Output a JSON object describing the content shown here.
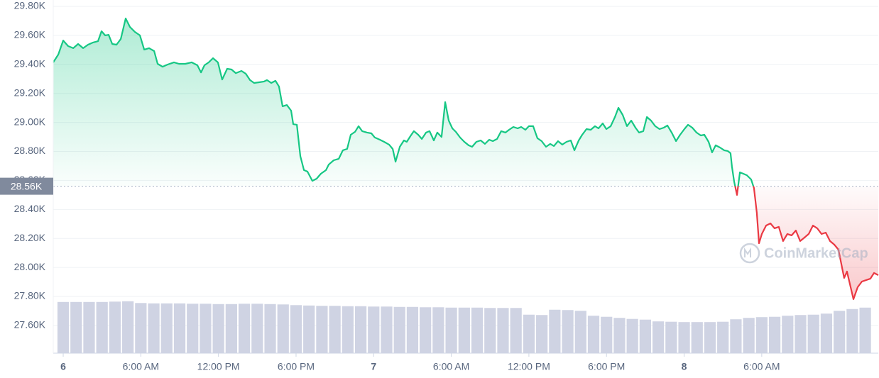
{
  "chart_data": {
    "type": "line",
    "color": "#16c784",
    "down_color": "#ea3943",
    "watermark": "CoinMarketCap",
    "baseline": {
      "value": 28560,
      "label": "28.56K"
    },
    "x": [
      -0.77,
      -0.38,
      0,
      0.38,
      0.77,
      1.15,
      1.54,
      1.92,
      2.31,
      2.69,
      2.96,
      3.24,
      3.51,
      3.79,
      4.12,
      4.45,
      4.83,
      5.16,
      5.54,
      5.93,
      6.26,
      6.64,
      7.03,
      7.3,
      7.68,
      8.07,
      8.56,
      8.95,
      9.44,
      9.93,
      10.37,
      10.65,
      10.92,
      11.25,
      11.58,
      11.96,
      12.29,
      12.68,
      13.01,
      13.34,
      13.78,
      14.11,
      14.44,
      14.76,
      15.15,
      15.53,
      15.75,
      16.08,
      16.41,
      16.68,
      16.96,
      17.29,
      17.62,
      17.78,
      18.06,
      18.33,
      18.61,
      18.88,
      19.26,
      19.59,
      19.92,
      20.31,
      20.53,
      20.91,
      21.3,
      21.62,
      21.95,
      22.23,
      22.56,
      22.83,
      23.11,
      23.49,
      23.82,
      24.09,
      24.48,
      24.81,
      25.19,
      25.47,
      25.69,
      26.02,
      26.34,
      26.56,
      26.84,
      27.11,
      27.44,
      27.72,
      28.05,
      28.32,
      28.65,
      28.92,
      29.25,
      29.53,
      29.8,
      30.08,
      30.35,
      30.68,
      31.01,
      31.34,
      31.61,
      31.94,
      32.27,
      32.6,
      32.93,
      33.21,
      33.54,
      33.86,
      34.19,
      34.47,
      34.8,
      35.13,
      35.4,
      35.73,
      36,
      36.33,
      36.66,
      36.99,
      37.32,
      37.65,
      37.93,
      38.25,
      38.58,
      38.91,
      39.24,
      39.52,
      39.85,
      40.12,
      40.45,
      40.78,
      41.11,
      41.38,
      41.71,
      41.99,
      42.32,
      42.65,
      42.92,
      43.25,
      43.58,
      43.91,
      44.24,
      44.51,
      44.84,
      45.12,
      45.44,
      45.77,
      46.1,
      46.43,
      46.71,
      47.04,
      47.37,
      47.69,
      48.02,
      48.3,
      48.63,
      48.96,
      49.29,
      49.56,
      49.89,
      50.16,
      50.44,
      50.77,
      51.1,
      51.37,
      51.59,
      51.7,
      51.87,
      52.09,
      52.31,
      52.58,
      52.85,
      53.18,
      53.4,
      53.62,
      53.79,
      54.01,
      54.34,
      54.67,
      54.99,
      55.32,
      55.65,
      55.98,
      56.31,
      56.64,
      56.97,
      57.3,
      57.63,
      57.96,
      58.29,
      58.62,
      58.95,
      59.28,
      59.61,
      59.93,
      60.15,
      60.37,
      60.59,
      60.81,
      61.09,
      61.42,
      61.74,
      62.07,
      62.4,
      62.68,
      63.01
    ],
    "values": [
      29414,
      29468,
      29565,
      29526,
      29512,
      29541,
      29512,
      29536,
      29551,
      29560,
      29629,
      29600,
      29604,
      29541,
      29536,
      29575,
      29717,
      29658,
      29624,
      29600,
      29502,
      29512,
      29492,
      29404,
      29384,
      29399,
      29414,
      29404,
      29404,
      29414,
      29394,
      29345,
      29394,
      29414,
      29443,
      29414,
      29296,
      29370,
      29365,
      29340,
      29355,
      29336,
      29292,
      29272,
      29277,
      29282,
      29292,
      29272,
      29287,
      29248,
      29111,
      29120,
      29081,
      28988,
      28984,
      28768,
      28671,
      28661,
      28597,
      28612,
      28646,
      28671,
      28710,
      28739,
      28749,
      28808,
      28817,
      28915,
      28935,
      28974,
      28940,
      28930,
      28925,
      28896,
      28881,
      28866,
      28847,
      28817,
      28729,
      28832,
      28876,
      28866,
      28905,
      28940,
      28915,
      28886,
      28930,
      28940,
      28876,
      28930,
      28900,
      29140,
      29013,
      28959,
      28935,
      28896,
      28866,
      28842,
      28832,
      28866,
      28876,
      28852,
      28881,
      28871,
      28886,
      28940,
      28930,
      28949,
      28969,
      28959,
      28969,
      28949,
      28974,
      28974,
      28891,
      28871,
      28832,
      28852,
      28837,
      28871,
      28847,
      28866,
      28876,
      28808,
      28876,
      28915,
      28954,
      28949,
      28974,
      28959,
      28993,
      28954,
      28974,
      29037,
      29101,
      29052,
      28974,
      29013,
      28964,
      28930,
      28940,
      29037,
      29013,
      28974,
      28954,
      28964,
      28979,
      28930,
      28871,
      28915,
      28954,
      28984,
      28964,
      28930,
      28910,
      28915,
      28866,
      28793,
      28842,
      28827,
      28808,
      28803,
      28788,
      28695,
      28592,
      28500,
      28656,
      28646,
      28636,
      28607,
      28548,
      28377,
      28167,
      28231,
      28289,
      28304,
      28270,
      28280,
      28182,
      28231,
      28221,
      28255,
      28182,
      28206,
      28231,
      28289,
      28270,
      28231,
      28240,
      28182,
      28157,
      28123,
      28025,
      27928,
      27972,
      27888,
      27781,
      27864,
      27903,
      27913,
      27923,
      27962,
      27947
    ],
    "xlim": [
      -0.77,
      63.01
    ],
    "ylim": [
      27409,
      29844
    ],
    "yticks": [
      {
        "value": 27600,
        "label": "27.60K"
      },
      {
        "value": 27800,
        "label": "27.80K"
      },
      {
        "value": 28000,
        "label": "28.00K"
      },
      {
        "value": 28200,
        "label": "28.20K"
      },
      {
        "value": 28400,
        "label": "28.40K"
      },
      {
        "value": 28600,
        "label": "28.60K"
      },
      {
        "value": 28800,
        "label": "28.80K"
      },
      {
        "value": 29000,
        "label": "29.00K"
      },
      {
        "value": 29200,
        "label": "29.20K"
      },
      {
        "value": 29400,
        "label": "29.40K"
      },
      {
        "value": 29600,
        "label": "29.60K"
      },
      {
        "value": 29800,
        "label": "29.80K"
      }
    ],
    "xticks": [
      {
        "value": 0,
        "label": "6"
      },
      {
        "value": 6,
        "label": "6:00 AM"
      },
      {
        "value": 12,
        "label": "12:00 PM"
      },
      {
        "value": 18,
        "label": "6:00 PM"
      },
      {
        "value": 24,
        "label": "7"
      },
      {
        "value": 30,
        "label": "6:00 AM"
      },
      {
        "value": 36,
        "label": "12:00 PM"
      },
      {
        "value": 42,
        "label": "6:00 PM"
      },
      {
        "value": 48,
        "label": "8"
      },
      {
        "value": 54,
        "label": "6:00 AM"
      }
    ],
    "grid": true,
    "volume": {
      "color": "#cfd3e3",
      "y2lim": [
        0,
        100
      ],
      "x": [
        0,
        1,
        2,
        3,
        4,
        5,
        6,
        7,
        8,
        9,
        10,
        11,
        12,
        13,
        14,
        15,
        16,
        17,
        18,
        19,
        20,
        21,
        22,
        23,
        24,
        25,
        26,
        27,
        28,
        29,
        30,
        31,
        32,
        33,
        34,
        35,
        36,
        37,
        38,
        39,
        40,
        41,
        42,
        43,
        44,
        45,
        46,
        47,
        48,
        49,
        50,
        51,
        52,
        53,
        54,
        55,
        56,
        57,
        58,
        59,
        60,
        61,
        62
      ],
      "values": [
        14.5,
        14.5,
        14.5,
        14.5,
        14.6,
        14.7,
        14.2,
        14.1,
        14.1,
        14.1,
        14,
        14,
        13.9,
        13.9,
        14,
        14,
        13.9,
        13.8,
        13.6,
        13.5,
        13.4,
        13.4,
        13.3,
        13.3,
        13.2,
        13.2,
        13.1,
        13.1,
        13,
        13,
        12.9,
        12.9,
        12.9,
        12.8,
        12.8,
        12.8,
        10.9,
        10.8,
        12.3,
        12.2,
        12,
        10.6,
        10.3,
        10,
        9.7,
        9.5,
        9,
        8.9,
        8.8,
        8.8,
        8.8,
        8.9,
        9.6,
        10,
        10.2,
        10.3,
        10.6,
        10.8,
        10.9,
        11.2,
        12,
        12.5,
        12.9
      ]
    }
  }
}
